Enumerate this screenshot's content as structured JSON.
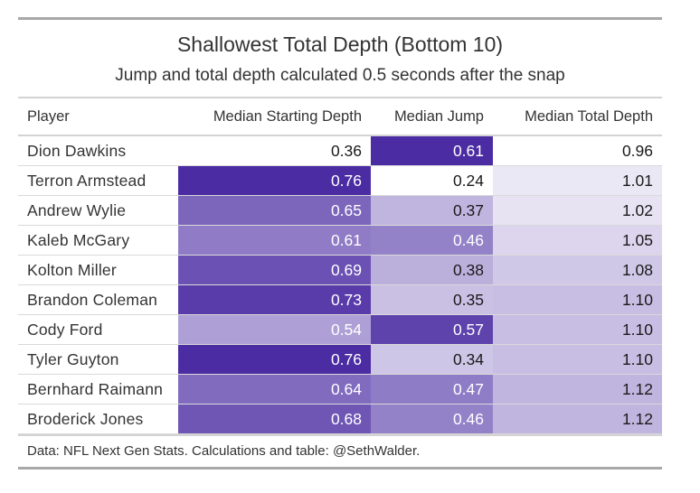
{
  "chart_data": {
    "type": "table",
    "title": "Shallowest Total Depth (Bottom 10)",
    "subtitle": "Jump and total depth calculated 0.5 seconds after the snap",
    "columns": [
      "Player",
      "Median Starting Depth",
      "Median Jump",
      "Median Total Depth"
    ],
    "rows": [
      {
        "player": "Dion Dawkins",
        "start": "0.36",
        "jump": "0.61",
        "total": "0.96"
      },
      {
        "player": "Terron Armstead",
        "start": "0.76",
        "jump": "0.24",
        "total": "1.01"
      },
      {
        "player": "Andrew Wylie",
        "start": "0.65",
        "jump": "0.37",
        "total": "1.02"
      },
      {
        "player": "Kaleb McGary",
        "start": "0.61",
        "jump": "0.46",
        "total": "1.05"
      },
      {
        "player": "Kolton Miller",
        "start": "0.69",
        "jump": "0.38",
        "total": "1.08"
      },
      {
        "player": "Brandon Coleman",
        "start": "0.73",
        "jump": "0.35",
        "total": "1.10"
      },
      {
        "player": "Cody Ford",
        "start": "0.54",
        "jump": "0.57",
        "total": "1.10"
      },
      {
        "player": "Tyler Guyton",
        "start": "0.76",
        "jump": "0.34",
        "total": "1.10"
      },
      {
        "player": "Bernhard Raimann",
        "start": "0.64",
        "jump": "0.47",
        "total": "1.12"
      },
      {
        "player": "Broderick Jones",
        "start": "0.68",
        "jump": "0.46",
        "total": "1.12"
      }
    ],
    "color_scale": {
      "low": "#ffffff",
      "high": "#4b2ca3"
    },
    "source": "Data: NFL Next Gen Stats. Calculations and table: @SethWalder."
  }
}
